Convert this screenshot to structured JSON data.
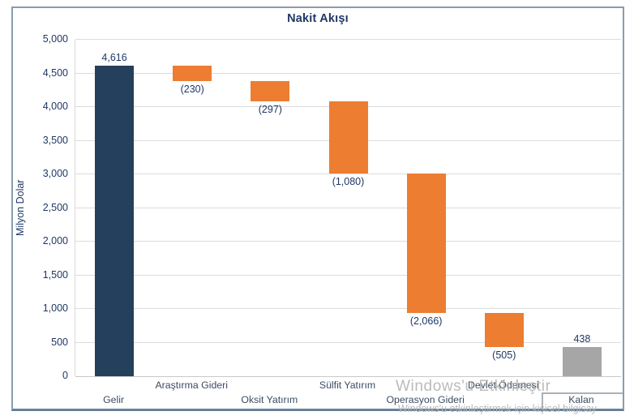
{
  "chart_data": {
    "type": "waterfall",
    "title": "Nakit Akışı",
    "ylabel": "Milyon Dolar",
    "ylim": [
      0,
      5000
    ],
    "ytick_step": 500,
    "ytick_labels": [
      "0",
      "500",
      "1,000",
      "1,500",
      "2,000",
      "2,500",
      "3,000",
      "3,500",
      "4,000",
      "4,500",
      "5,000"
    ],
    "grid": true,
    "bars": [
      {
        "category": "Gelir",
        "value": 4616,
        "display": "4,616",
        "kind": "total",
        "label_side": "above"
      },
      {
        "category": "Araştırma Gideri",
        "value": -230,
        "display": "(230)",
        "kind": "decrease",
        "label_side": "below"
      },
      {
        "category": "Oksit Yatırım",
        "value": -297,
        "display": "(297)",
        "kind": "decrease",
        "label_side": "below"
      },
      {
        "category": "Sülfit Yatırım",
        "value": -1080,
        "display": "(1,080)",
        "kind": "decrease",
        "label_side": "below"
      },
      {
        "category": "Operasyon Gideri",
        "value": -2066,
        "display": "(2,066)",
        "kind": "decrease",
        "label_side": "below"
      },
      {
        "category": "Devlet Ödemesi",
        "value": -505,
        "display": "(505)",
        "kind": "decrease",
        "label_side": "below"
      },
      {
        "category": "Kalan",
        "value": 438,
        "display": "438",
        "kind": "final_total",
        "label_side": "above"
      }
    ],
    "palette": {
      "total": "#24405c",
      "increase": "#24405c",
      "decrease": "#ed7d31",
      "final_total": "#a6a6a6"
    },
    "legend_position": "none"
  },
  "colors": {
    "title_text": "#1f3864",
    "axis_text": "#1f3864",
    "gridline": "#dcdcdc",
    "frame_border": "#8a9cb0"
  },
  "watermark": {
    "line1": "Windows'u Etkinleştir",
    "line2": "Windows'u etkinleştirmek için kişisel bilgisay"
  }
}
